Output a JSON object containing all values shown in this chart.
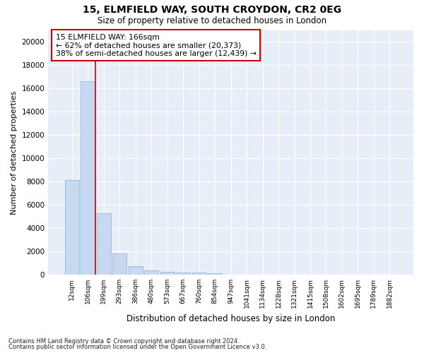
{
  "title_line1": "15, ELMFIELD WAY, SOUTH CROYDON, CR2 0EG",
  "title_line2": "Size of property relative to detached houses in London",
  "xlabel": "Distribution of detached houses by size in London",
  "ylabel": "Number of detached properties",
  "bar_color": "#c8d8f0",
  "bar_edge_color": "#90b8e0",
  "background_color": "#e8eef8",
  "grid_color": "#ffffff",
  "annotation_border_color": "#cc0000",
  "vline_color": "#cc0000",
  "footer_line1": "Contains HM Land Registry data © Crown copyright and database right 2024.",
  "footer_line2": "Contains public sector information licensed under the Open Government Licence v3.0.",
  "annotation_title": "15 ELMFIELD WAY: 166sqm",
  "annotation_line2": "← 62% of detached houses are smaller (20,373)",
  "annotation_line3": "38% of semi-detached houses are larger (12,439) →",
  "categories": [
    "12sqm",
    "106sqm",
    "199sqm",
    "293sqm",
    "386sqm",
    "480sqm",
    "573sqm",
    "667sqm",
    "760sqm",
    "854sqm",
    "947sqm",
    "1041sqm",
    "1134sqm",
    "1228sqm",
    "1321sqm",
    "1415sqm",
    "1508sqm",
    "1602sqm",
    "1695sqm",
    "1789sqm",
    "1882sqm"
  ],
  "values": [
    8100,
    16600,
    5300,
    1850,
    750,
    380,
    270,
    210,
    195,
    140,
    0,
    0,
    0,
    0,
    0,
    0,
    0,
    0,
    0,
    0,
    0
  ],
  "ylim": [
    0,
    21000
  ],
  "yticks": [
    0,
    2000,
    4000,
    6000,
    8000,
    10000,
    12000,
    14000,
    16000,
    18000,
    20000
  ],
  "vline_x": 1.5,
  "fig_width": 6.0,
  "fig_height": 5.0,
  "dpi": 100
}
